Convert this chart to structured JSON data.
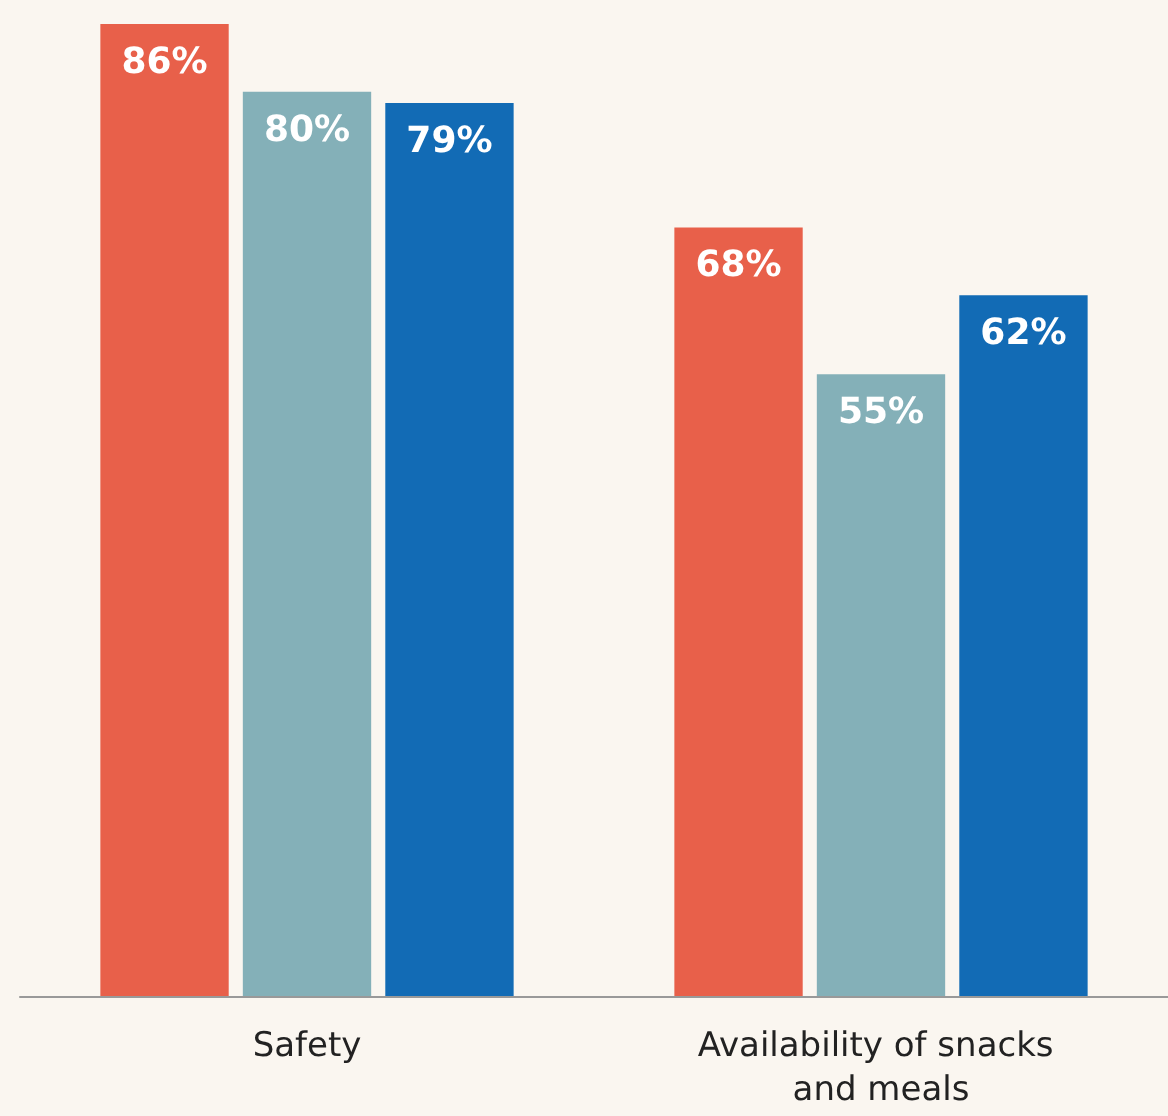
{
  "chart_data": {
    "type": "bar",
    "categories": [
      "Safety",
      "Availability of snacks and meals"
    ],
    "series": [
      {
        "color": "#e8604a",
        "values": [
          86,
          68
        ],
        "value_labels": [
          "86%",
          "68%"
        ]
      },
      {
        "color": "#84b0b8",
        "values": [
          80,
          55
        ],
        "value_labels": [
          "80%",
          "55%"
        ]
      },
      {
        "color": "#126bb5",
        "values": [
          79,
          62
        ],
        "value_labels": [
          "79%",
          "62%"
        ]
      }
    ]
  }
}
